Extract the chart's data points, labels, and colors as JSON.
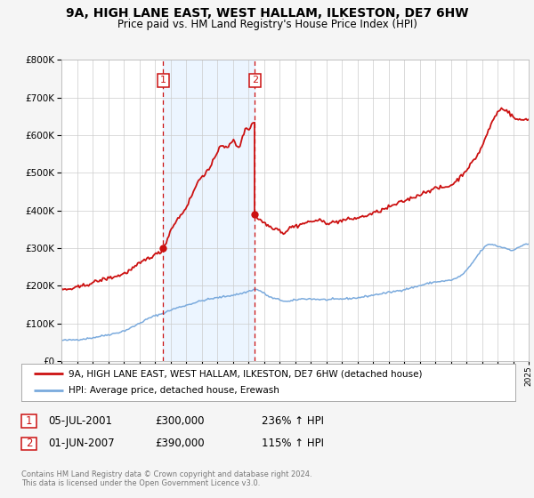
{
  "title": "9A, HIGH LANE EAST, WEST HALLAM, ILKESTON, DE7 6HW",
  "subtitle": "Price paid vs. HM Land Registry's House Price Index (HPI)",
  "bg_color": "#f5f5f5",
  "plot_bg_color": "#ffffff",
  "grid_color": "#cccccc",
  "hpi_color": "#7aaadd",
  "price_color": "#cc1111",
  "sale1": {
    "date_num": 2001.54,
    "price": 300000,
    "label": "1"
  },
  "sale2": {
    "date_num": 2007.42,
    "price": 390000,
    "label": "2"
  },
  "shade_color": "#ddeeff",
  "shade_alpha": 0.55,
  "ylim": [
    0,
    800000
  ],
  "xlim": [
    1995,
    2025
  ],
  "legend_entries": [
    "9A, HIGH LANE EAST, WEST HALLAM, ILKESTON, DE7 6HW (detached house)",
    "HPI: Average price, detached house, Erewash"
  ],
  "table_rows": [
    {
      "num": "1",
      "date": "05-JUL-2001",
      "price": "£300,000",
      "hpi": "236% ↑ HPI"
    },
    {
      "num": "2",
      "date": "01-JUN-2007",
      "price": "£390,000",
      "hpi": "115% ↑ HPI"
    }
  ],
  "footnote1": "Contains HM Land Registry data © Crown copyright and database right 2024.",
  "footnote2": "This data is licensed under the Open Government Licence v3.0."
}
